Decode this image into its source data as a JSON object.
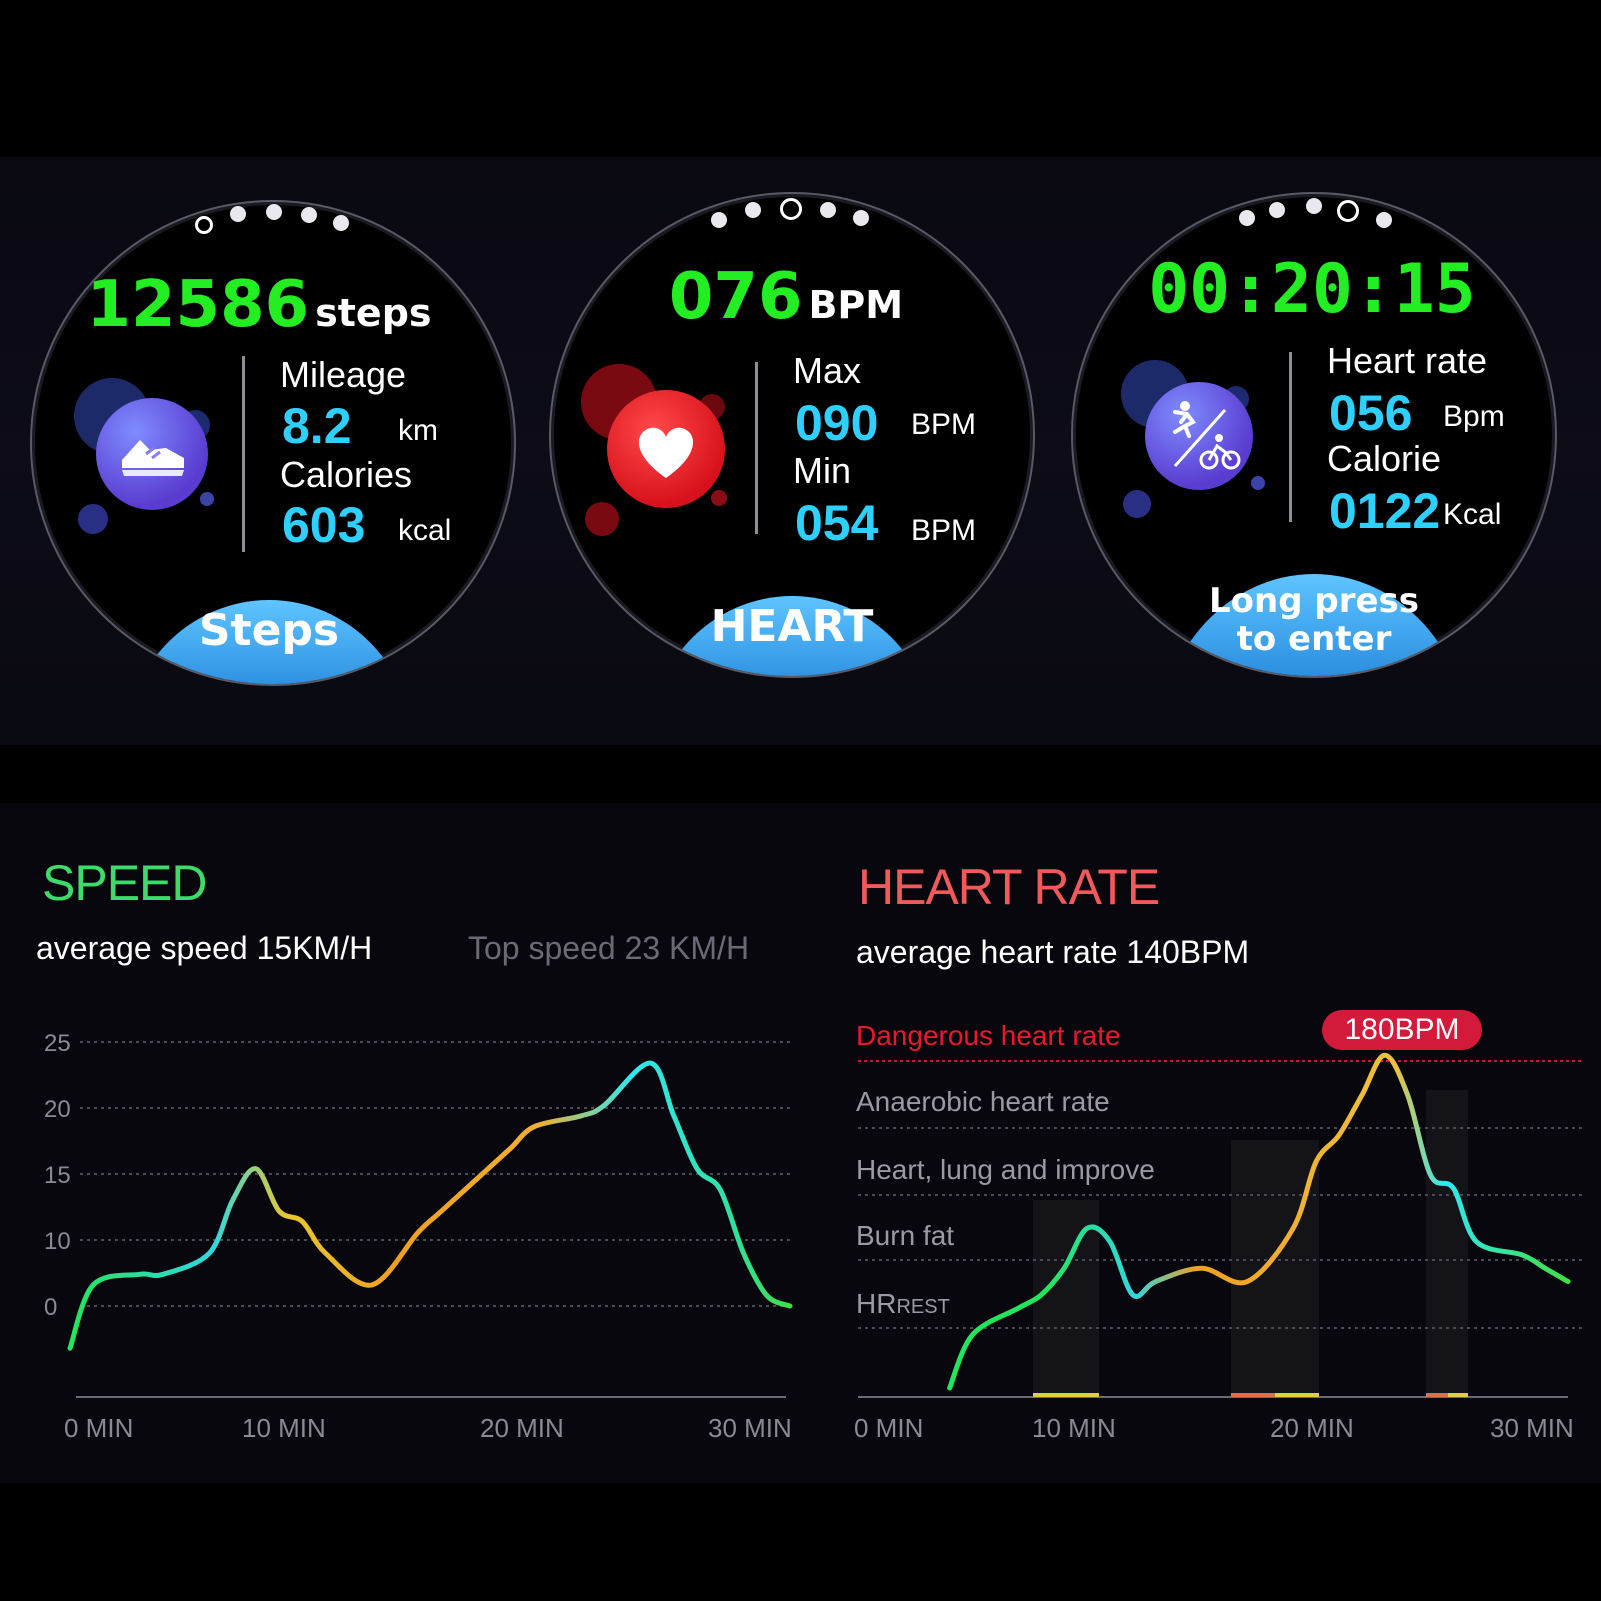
{
  "watches": [
    {
      "main_value": "12586",
      "main_unit": "steps",
      "icon": "sneaker-icon",
      "rows": [
        {
          "label": "Mileage",
          "value": "8.2",
          "unit": "km"
        },
        {
          "label": "Calories",
          "value": "603",
          "unit": "kcal"
        }
      ],
      "footer": "Steps",
      "page_index": 0
    },
    {
      "main_value": "076",
      "main_unit": "BPM",
      "icon": "heart-icon",
      "rows": [
        {
          "label": "Max",
          "value": "090",
          "unit": "BPM"
        },
        {
          "label": "Min",
          "value": "054",
          "unit": "BPM"
        }
      ],
      "footer": "HEART",
      "page_index": 2
    },
    {
      "main_value": "00:20:15",
      "main_unit": "",
      "icon": "run-bike-icon",
      "rows": [
        {
          "label": "Heart rate",
          "value": "056",
          "unit": "Bpm"
        },
        {
          "label": "Calorie",
          "value": "0122",
          "unit": "Kcal"
        }
      ],
      "footer_line1": "Long press",
      "footer_line2": "to enter",
      "page_index": 3
    }
  ],
  "colors": {
    "main_green": "#22ee22",
    "value_cyan": "#2ed0ff",
    "speed_title": "#3ddc6a",
    "heart_title": "#f05a5a",
    "danger_red": "#e8182e"
  },
  "speed": {
    "title": "SPEED",
    "average": "average speed 15KM/H",
    "top": "Top speed  23 KM/H"
  },
  "heart_rate": {
    "title": "HEART RATE",
    "average": "average heart rate 140BPM",
    "zones": [
      "Dangerous heart rate",
      "Anaerobic heart rate",
      "Heart, lung and improve",
      "Burn fat"
    ],
    "hr_rest_a": "HR",
    "hr_rest_b": "REST",
    "peak_label": "180BPM"
  },
  "chart_data": [
    {
      "type": "line",
      "y_ticks": [
        "25",
        "20",
        "15",
        "10",
        "0"
      ],
      "x_ticks": [
        "0 MIN",
        "10 MIN",
        "20 MIN",
        "30 MIN"
      ],
      "x": [
        0,
        1,
        3,
        4,
        6,
        7,
        8,
        9,
        10,
        11,
        13,
        15,
        16,
        18,
        19,
        20,
        22,
        23,
        25,
        26,
        27,
        28,
        29,
        30,
        31
      ],
      "y": [
        -4,
        2,
        3,
        3,
        5,
        10,
        13,
        9,
        8,
        5,
        2,
        7,
        9,
        13,
        15,
        17,
        18,
        19,
        23,
        18,
        13,
        11,
        5,
        1,
        0
      ],
      "ylim": [
        -5,
        27
      ],
      "xlim": [
        0,
        31
      ],
      "grid": true
    },
    {
      "type": "line",
      "x_ticks": [
        "0 MIN",
        "10 MIN",
        "20 MIN",
        "30 MIN"
      ],
      "x": [
        4,
        5,
        7,
        8,
        9,
        10,
        11,
        12,
        13,
        15,
        17,
        19,
        20,
        21,
        22,
        23,
        24,
        25,
        26,
        27,
        29,
        30,
        31
      ],
      "y": [
        0,
        20,
        30,
        35,
        45,
        60,
        55,
        35,
        40,
        45,
        40,
        60,
        85,
        95,
        110,
        125,
        110,
        80,
        75,
        55,
        50,
        45,
        40
      ],
      "ylim": [
        0,
        130
      ],
      "xlim": [
        0,
        31
      ],
      "grid": true
    }
  ]
}
